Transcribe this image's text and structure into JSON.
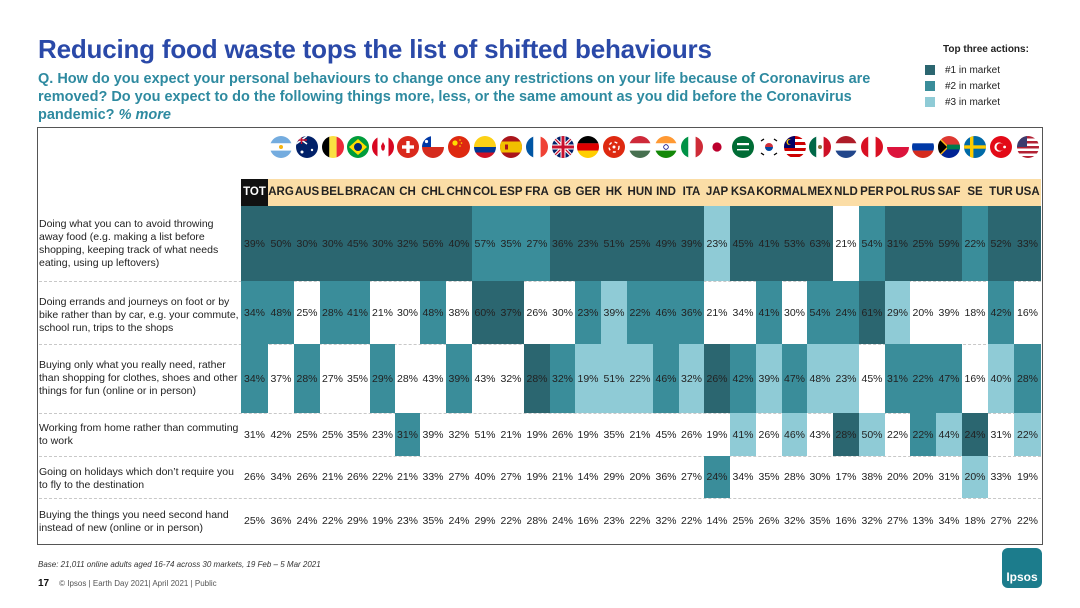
{
  "header": {
    "title": "Reducing food waste tops the list of shifted behaviours",
    "question": "Q. How do you expect your personal behaviours to change once any restrictions on your life because of Coronavirus are removed? Do you expect to do the following things more, less, or the same amount as you did before the Coronavirus pandemic?",
    "question_suffix": "% more"
  },
  "legend": {
    "title": "Top three actions:",
    "items": [
      {
        "label": "#1 in market",
        "color": "#2b6670"
      },
      {
        "label": "#2 in market",
        "color": "#3a8d9a"
      },
      {
        "label": "#3 in market",
        "color": "#8fcbd6"
      }
    ]
  },
  "flags": [
    "argentina-flag",
    "australia-flag",
    "belgium-flag",
    "brazil-flag",
    "canada-flag",
    "switzerland-flag",
    "chile-flag",
    "china-flag",
    "colombia-flag",
    "spain-flag",
    "france-flag",
    "uk-flag",
    "germany-flag",
    "hong-kong-flag",
    "hungary-flag",
    "india-flag",
    "italy-flag",
    "japan-flag",
    "saudi-arabia-flag",
    "south-korea-flag",
    "malaysia-flag",
    "mexico-flag",
    "netherlands-flag",
    "peru-flag",
    "poland-flag",
    "russia-flag",
    "south-africa-flag",
    "sweden-flag",
    "turkey-flag",
    "usa-flag"
  ],
  "chart_data": {
    "type": "table",
    "columns": [
      "TOT",
      "ARG",
      "AUS",
      "BEL",
      "BRA",
      "CAN",
      "CH",
      "CHL",
      "CHN",
      "COL",
      "ESP",
      "FRA",
      "GB",
      "GER",
      "HK",
      "HUN",
      "IND",
      "ITA",
      "JAP",
      "KSA",
      "KOR",
      "MAL",
      "MEX",
      "NLD",
      "PER",
      "POL",
      "RUS",
      "SAF",
      "SE",
      "TUR",
      "USA"
    ],
    "rows": [
      {
        "label": "Doing what you can to avoid throwing away food (e.g. making a list before shopping, keeping track of what needs eating, using up leftovers)",
        "values": [
          "39%",
          "50%",
          "30%",
          "30%",
          "45%",
          "30%",
          "32%",
          "56%",
          "40%",
          "57%",
          "35%",
          "27%",
          "36%",
          "23%",
          "51%",
          "25%",
          "49%",
          "39%",
          "23%",
          "45%",
          "41%",
          "53%",
          "63%",
          "21%",
          "54%",
          "31%",
          "25%",
          "59%",
          "22%",
          "52%",
          "33%"
        ],
        "rank": [
          1,
          1,
          1,
          1,
          1,
          1,
          1,
          1,
          1,
          2,
          2,
          2,
          1,
          1,
          1,
          1,
          1,
          1,
          3,
          1,
          1,
          1,
          1,
          0,
          2,
          1,
          1,
          1,
          2,
          1,
          1
        ]
      },
      {
        "label": "Doing errands and journeys on foot or by bike rather than by car, e.g. your commute, school run, trips to the shops",
        "values": [
          "34%",
          "48%",
          "25%",
          "28%",
          "41%",
          "21%",
          "30%",
          "48%",
          "38%",
          "60%",
          "37%",
          "26%",
          "30%",
          "23%",
          "39%",
          "22%",
          "46%",
          "36%",
          "21%",
          "34%",
          "41%",
          "30%",
          "54%",
          "24%",
          "61%",
          "29%",
          "20%",
          "39%",
          "18%",
          "42%",
          "16%"
        ],
        "rank": [
          2,
          2,
          0,
          2,
          2,
          0,
          0,
          2,
          0,
          1,
          1,
          0,
          0,
          2,
          3,
          2,
          2,
          2,
          0,
          0,
          2,
          0,
          2,
          2,
          1,
          3,
          0,
          0,
          0,
          2,
          0
        ]
      },
      {
        "label": "Buying only what you really need, rather than shopping for clothes, shoes and other things for fun (online or in person)",
        "values": [
          "34%",
          "37%",
          "28%",
          "27%",
          "35%",
          "29%",
          "28%",
          "43%",
          "39%",
          "43%",
          "32%",
          "28%",
          "32%",
          "19%",
          "51%",
          "22%",
          "46%",
          "32%",
          "26%",
          "42%",
          "39%",
          "47%",
          "48%",
          "23%",
          "45%",
          "31%",
          "22%",
          "47%",
          "16%",
          "40%",
          "28%"
        ],
        "rank": [
          2,
          0,
          2,
          0,
          0,
          2,
          0,
          0,
          2,
          0,
          0,
          1,
          2,
          3,
          3,
          3,
          2,
          3,
          1,
          2,
          3,
          2,
          3,
          3,
          0,
          2,
          2,
          2,
          0,
          3,
          2
        ]
      },
      {
        "label": "Working from home rather than commuting to work",
        "values": [
          "31%",
          "42%",
          "25%",
          "25%",
          "35%",
          "23%",
          "31%",
          "39%",
          "32%",
          "51%",
          "21%",
          "19%",
          "26%",
          "19%",
          "35%",
          "21%",
          "45%",
          "26%",
          "19%",
          "41%",
          "26%",
          "46%",
          "43%",
          "28%",
          "50%",
          "22%",
          "22%",
          "44%",
          "24%",
          "31%",
          "22%"
        ],
        "rank": [
          0,
          0,
          0,
          0,
          0,
          0,
          2,
          0,
          0,
          0,
          0,
          0,
          0,
          0,
          0,
          0,
          0,
          0,
          0,
          3,
          0,
          3,
          0,
          1,
          3,
          0,
          2,
          3,
          1,
          0,
          3
        ]
      },
      {
        "label": "Going on holidays which don’t require you to fly to the destination",
        "values": [
          "26%",
          "34%",
          "26%",
          "21%",
          "26%",
          "22%",
          "21%",
          "33%",
          "27%",
          "40%",
          "27%",
          "19%",
          "21%",
          "14%",
          "29%",
          "20%",
          "36%",
          "27%",
          "24%",
          "34%",
          "35%",
          "28%",
          "30%",
          "17%",
          "38%",
          "20%",
          "20%",
          "31%",
          "20%",
          "33%",
          "19%"
        ],
        "rank": [
          0,
          0,
          0,
          0,
          0,
          0,
          0,
          0,
          0,
          0,
          0,
          0,
          0,
          0,
          0,
          0,
          0,
          0,
          2,
          0,
          0,
          0,
          0,
          0,
          0,
          0,
          0,
          0,
          3,
          0,
          0
        ]
      },
      {
        "label": "Buying the things you need second hand instead of new (online or in person)",
        "values": [
          "25%",
          "36%",
          "24%",
          "22%",
          "29%",
          "19%",
          "23%",
          "35%",
          "24%",
          "29%",
          "22%",
          "28%",
          "24%",
          "16%",
          "23%",
          "22%",
          "32%",
          "22%",
          "14%",
          "25%",
          "26%",
          "32%",
          "35%",
          "16%",
          "32%",
          "27%",
          "13%",
          "34%",
          "18%",
          "27%",
          "22%"
        ],
        "rank": [
          0,
          0,
          0,
          0,
          0,
          0,
          0,
          0,
          0,
          0,
          0,
          0,
          0,
          0,
          0,
          0,
          0,
          0,
          0,
          0,
          0,
          0,
          0,
          0,
          0,
          0,
          0,
          0,
          0,
          0,
          0
        ]
      }
    ]
  },
  "footer": {
    "base": "Base: 21,011 online adults aged 16-74 across 30 markets,  19 Feb – 5 Mar 2021",
    "page": "17",
    "copyright": "© Ipsos | Earth Day 2021| April 2021 | Public",
    "logo": "Ipsos"
  }
}
